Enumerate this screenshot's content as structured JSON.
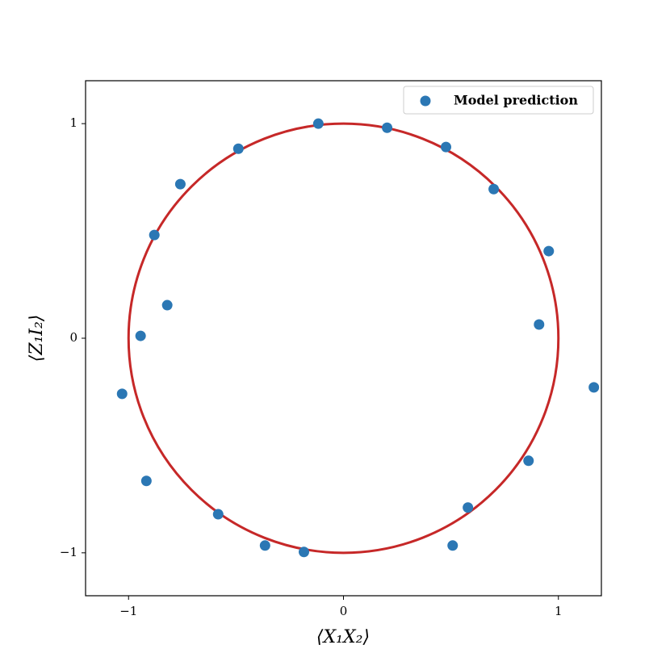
{
  "chart_data": {
    "type": "scatter",
    "xlabel": "⟨X₁X₂⟩",
    "ylabel": "⟨Z₁I₂⟩",
    "xlim": [
      -1.2,
      1.2
    ],
    "ylim": [
      -1.2,
      1.2
    ],
    "xticks": [
      {
        "value": -1,
        "label": "−1"
      },
      0,
      1
    ],
    "yticks": [
      {
        "value": -1,
        "label": "−1"
      },
      0,
      1
    ],
    "legend": "upper right",
    "series": [
      {
        "name": "Model prediction",
        "color": "#2b77b4",
        "x": [
          -0.117,
          0.203,
          0.477,
          0.699,
          0.955,
          0.91,
          1.165,
          0.861,
          0.579,
          0.508,
          -0.184,
          -0.365,
          -0.583,
          -0.917,
          -1.03,
          -0.944,
          -0.82,
          -0.88,
          -0.759,
          -0.489
        ],
        "values": [
          1.0,
          0.981,
          0.891,
          0.695,
          0.406,
          0.064,
          -0.229,
          -0.571,
          -0.789,
          -0.966,
          -0.996,
          -0.966,
          -0.82,
          -0.665,
          -0.259,
          0.011,
          0.154,
          0.481,
          0.718,
          0.883
        ]
      }
    ],
    "reference_circle": {
      "center": [
        0,
        0
      ],
      "radius": 1,
      "color": "#c62828"
    }
  }
}
